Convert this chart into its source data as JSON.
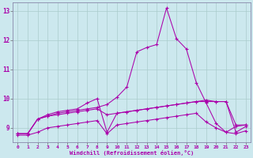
{
  "background_color": "#cce8ee",
  "grid_color": "#aacccc",
  "line_color": "#aa00aa",
  "xlim": [
    -0.5,
    23.5
  ],
  "ylim": [
    8.5,
    13.3
  ],
  "yticks": [
    9,
    10,
    11,
    12,
    13
  ],
  "xticks": [
    0,
    1,
    2,
    3,
    4,
    5,
    6,
    7,
    8,
    9,
    10,
    11,
    12,
    13,
    14,
    15,
    16,
    17,
    18,
    19,
    20,
    21,
    22,
    23
  ],
  "xlabel": "Windchill (Refroidissement éolien,°C)",
  "series": [
    {
      "x": [
        0,
        1,
        2,
        3,
        4,
        5,
        6,
        7,
        8,
        9,
        10,
        11,
        12,
        13,
        14,
        15,
        16,
        17,
        18,
        19,
        20,
        21,
        22,
        23
      ],
      "y": [
        8.8,
        8.8,
        9.3,
        9.4,
        9.5,
        9.55,
        9.6,
        9.65,
        9.7,
        9.8,
        10.05,
        10.4,
        11.6,
        11.75,
        11.85,
        13.1,
        12.05,
        11.7,
        10.55,
        9.85,
        9.15,
        8.85,
        9.05,
        9.1
      ]
    },
    {
      "x": [
        0,
        1,
        2,
        3,
        4,
        5,
        6,
        7,
        8,
        9,
        10,
        11,
        12,
        13,
        14,
        15,
        16,
        17,
        18,
        19,
        20,
        21,
        22,
        23
      ],
      "y": [
        8.8,
        8.8,
        9.3,
        9.45,
        9.55,
        9.6,
        9.65,
        9.85,
        10.0,
        8.85,
        9.5,
        9.55,
        9.6,
        9.65,
        9.7,
        9.75,
        9.8,
        9.85,
        9.9,
        9.9,
        9.9,
        9.9,
        9.1,
        9.1
      ]
    },
    {
      "x": [
        0,
        1,
        2,
        3,
        4,
        5,
        6,
        7,
        8,
        9,
        10,
        11,
        12,
        13,
        14,
        15,
        16,
        17,
        18,
        19,
        20,
        21,
        22,
        23
      ],
      "y": [
        8.8,
        8.8,
        9.3,
        9.4,
        9.45,
        9.5,
        9.55,
        9.6,
        9.65,
        9.45,
        9.5,
        9.55,
        9.6,
        9.65,
        9.7,
        9.75,
        9.8,
        9.85,
        9.9,
        9.95,
        9.9,
        9.9,
        8.85,
        9.05
      ]
    },
    {
      "x": [
        0,
        1,
        2,
        3,
        4,
        5,
        6,
        7,
        8,
        9,
        10,
        11,
        12,
        13,
        14,
        15,
        16,
        17,
        18,
        19,
        20,
        21,
        22,
        23
      ],
      "y": [
        8.75,
        8.75,
        8.85,
        9.0,
        9.05,
        9.1,
        9.15,
        9.2,
        9.25,
        8.8,
        9.1,
        9.15,
        9.2,
        9.25,
        9.3,
        9.35,
        9.4,
        9.45,
        9.5,
        9.2,
        9.0,
        8.85,
        8.8,
        8.9
      ]
    }
  ]
}
